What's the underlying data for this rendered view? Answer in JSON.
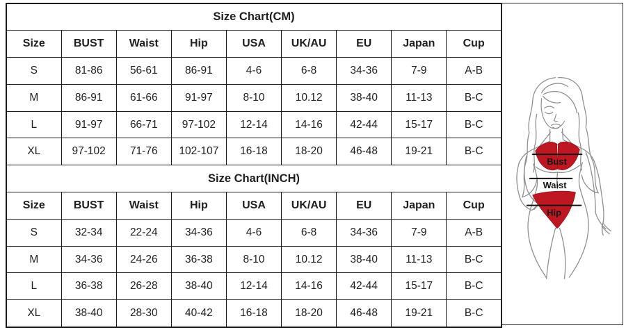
{
  "tables": [
    {
      "title": "Size Chart(CM)",
      "headers": [
        "Size",
        "BUST",
        "Waist",
        "Hip",
        "USA",
        "UK/AU",
        "EU",
        "Japan",
        "Cup"
      ],
      "rows": [
        [
          "S",
          "81-86",
          "56-61",
          "86-91",
          "4-6",
          "6-8",
          "34-36",
          "7-9",
          "A-B"
        ],
        [
          "M",
          "86-91",
          "61-66",
          "91-97",
          "8-10",
          "10.12",
          "38-40",
          "11-13",
          "B-C"
        ],
        [
          "L",
          "91-97",
          "66-71",
          "97-102",
          "12-14",
          "14-16",
          "42-44",
          "15-17",
          "B-C"
        ],
        [
          "XL",
          "97-102",
          "71-76",
          "102-107",
          "16-18",
          "18-20",
          "46-48",
          "19-21",
          "B-C"
        ]
      ]
    },
    {
      "title": "Size Chart(INCH)",
      "headers": [
        "Size",
        "BUST",
        "Waist",
        "Hip",
        "USA",
        "UK/AU",
        "EU",
        "Japan",
        "Cup"
      ],
      "rows": [
        [
          "S",
          "32-34",
          "22-24",
          "34-36",
          "4-6",
          "6-8",
          "34-36",
          "7-9",
          "A-B"
        ],
        [
          "M",
          "34-36",
          "24-26",
          "36-38",
          "8-10",
          "10.12",
          "38-40",
          "11-13",
          "B-C"
        ],
        [
          "L",
          "36-38",
          "26-28",
          "38-40",
          "12-14",
          "14-16",
          "42-44",
          "15-17",
          "B-C"
        ],
        [
          "XL",
          "38-40",
          "28-30",
          "40-42",
          "16-18",
          "18-20",
          "46-48",
          "19-21",
          "B-C"
        ]
      ]
    }
  ],
  "figure": {
    "labels": {
      "bust": "Bust",
      "waist": "Waist",
      "hip": "Hip"
    },
    "colors": {
      "bikini": "#bf1722",
      "bikini_stroke": "#96111a",
      "line_art": "#8f8f8f",
      "measure_line": "#141414",
      "label_text": "#141414"
    }
  }
}
